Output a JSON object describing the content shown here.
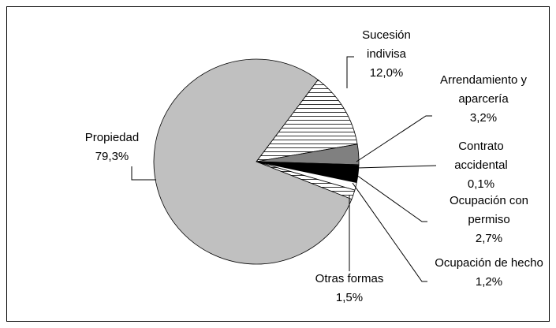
{
  "chart_data": {
    "type": "pie",
    "categories": [
      "Sucesión indivisa",
      "Arrendamiento y aparcería",
      "Contrato accidental",
      "Ocupación con permiso",
      "Ocupación de hecho",
      "Otras formas",
      "Propiedad"
    ],
    "values": [
      12.0,
      3.2,
      0.1,
      2.7,
      1.2,
      1.5,
      79.3
    ],
    "value_labels": [
      "12,0%",
      "3,2%",
      "0,1%",
      "2,7%",
      "1,2%",
      "1,5%",
      "79,3%"
    ],
    "colors": [
      "url(#hstripe)",
      "#808080",
      "#ffffff",
      "#000000",
      "#ffffff",
      "url(#hstripe)",
      "#c0c0c0"
    ]
  }
}
